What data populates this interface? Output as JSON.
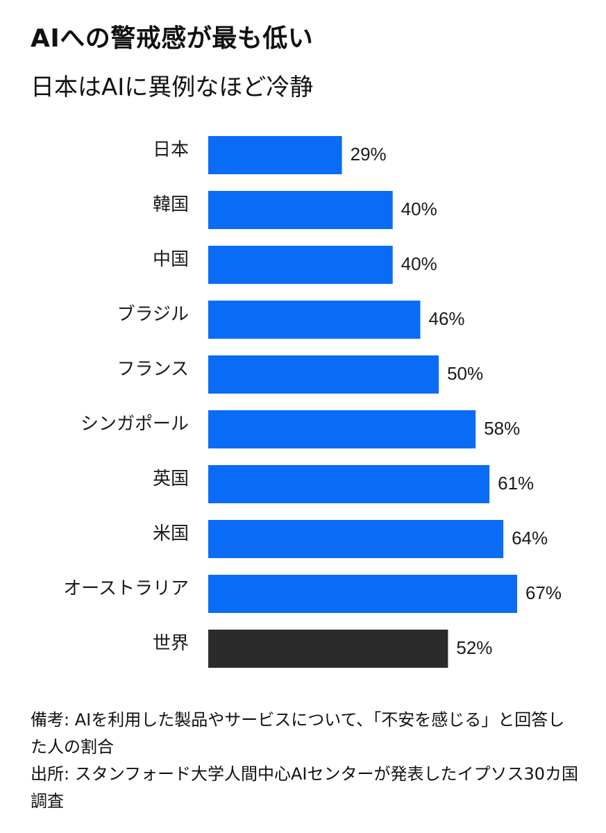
{
  "header": {
    "title": "AIへの警戒感が最も低い",
    "subtitle": "日本はAIに異例なほど冷静"
  },
  "footer": {
    "note": "備考: AIを利用した製品やサービスについて、「不安を感じる」と回答した人の割合",
    "source": "出所: スタンフォード大学人間中心AIセンターが発表したイプソス30カ国調査"
  },
  "colors": {
    "country_bar": "#0a6cf6",
    "world_bar": "#2b2b2b"
  },
  "chart_data": {
    "type": "bar",
    "orientation": "horizontal",
    "title": "AIへの警戒感が最も低い",
    "subtitle": "日本はAIに異例なほど冷静",
    "categories": [
      "日本",
      "韓国",
      "中国",
      "ブラジル",
      "フランス",
      "シンガポール",
      "英国",
      "米国",
      "オーストラリア",
      "世界"
    ],
    "values": [
      29,
      40,
      40,
      46,
      50,
      58,
      61,
      64,
      67,
      52
    ],
    "value_labels": [
      "29%",
      "40%",
      "40%",
      "46%",
      "50%",
      "58%",
      "61%",
      "64%",
      "67%",
      "52%"
    ],
    "highlight_category": "世界",
    "unit": "%",
    "xlim": [
      0,
      67
    ],
    "grid": false,
    "legend": "none"
  }
}
